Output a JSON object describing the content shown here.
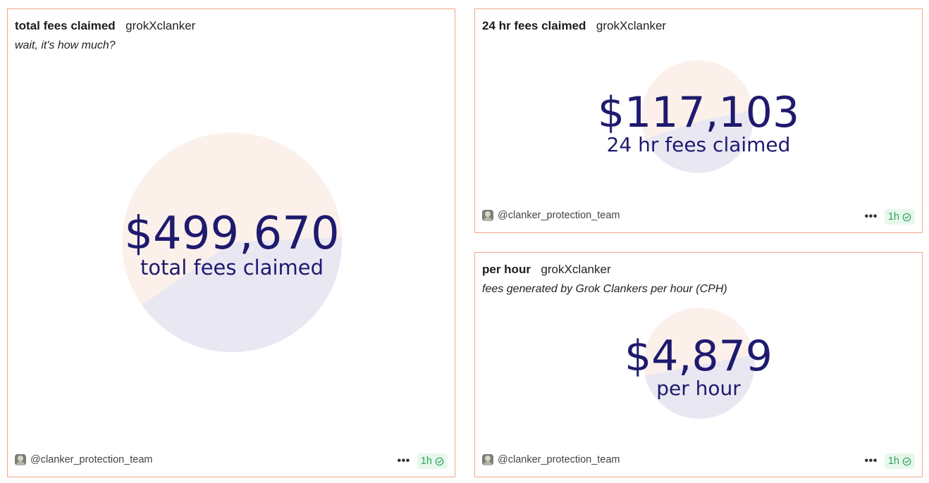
{
  "cards": {
    "total": {
      "title": "total fees claimed",
      "project": "grokXclanker",
      "subtitle": "wait, it's how much?",
      "value": "$499,670",
      "label": "total fees claimed",
      "author": "@clanker_protection_team",
      "more": "•••",
      "time": "1h"
    },
    "day": {
      "title": "24 hr fees claimed",
      "project": "grokXclanker",
      "value": "$117,103",
      "label": "24 hr fees claimed",
      "author": "@clanker_protection_team",
      "more": "•••",
      "time": "1h"
    },
    "hour": {
      "title": "per hour",
      "project": "grokXclanker",
      "subtitle": "fees generated by Grok Clankers per hour (CPH)",
      "value": "$4,879",
      "label": "per hour",
      "author": "@clanker_protection_team",
      "more": "•••",
      "time": "1h"
    }
  },
  "colors": {
    "border": "#f2a88a",
    "number": "#1e1a6e",
    "pie_top": "#fcf0ea",
    "pie_bottom": "#e9e7f2",
    "badge_bg": "#e8f7ec",
    "badge_text": "#29a35a"
  },
  "icons": {
    "avatar": "avatar-image",
    "more": "ellipsis-icon",
    "verified": "check-circle-icon"
  }
}
